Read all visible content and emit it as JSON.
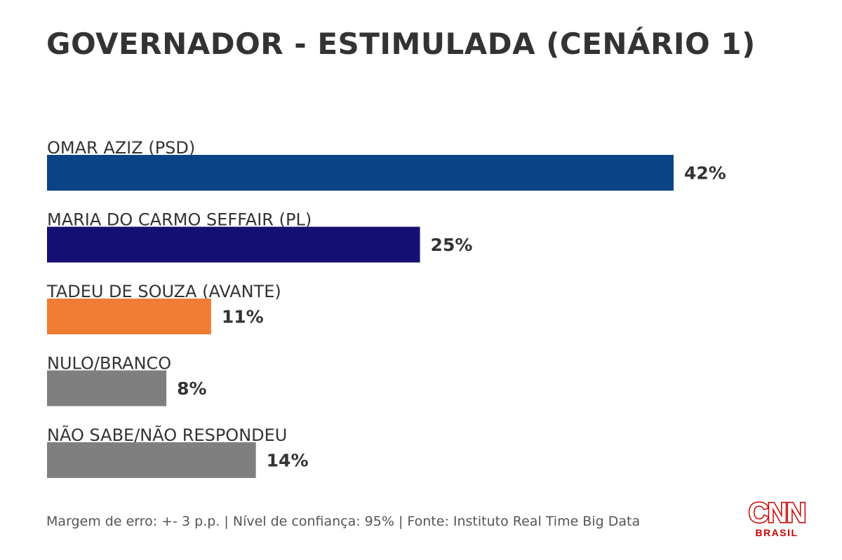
{
  "title": "GOVERNADOR - ESTIMULADA (CENÁRIO 1)",
  "footer": "Margem de erro: +- 3 p.p. | Nível de confiança: 95% | Fonte: Instituto Real Time Big Data",
  "logo": {
    "main": "CNN",
    "sub": "BRASIL"
  },
  "chart_data": {
    "type": "bar",
    "orientation": "horizontal",
    "title": "GOVERNADOR - ESTIMULADA (CENÁRIO 1)",
    "categories": [
      "OMAR AZIZ (PSD)",
      "MARIA DO CARMO SEFFAIR (PL)",
      "TADEU DE SOUZA (AVANTE)",
      "NULO/BRANCO",
      "NÃO SABE/NÃO RESPONDEU"
    ],
    "values": [
      42,
      25,
      11,
      8,
      14
    ],
    "value_labels": [
      "42%",
      "25%",
      "11%",
      "8%",
      "14%"
    ],
    "colors": [
      "#0b4486",
      "#160f73",
      "#ef7d33",
      "#7f7f7f",
      "#7f7f7f"
    ],
    "xlim": [
      0,
      100
    ],
    "grid": false,
    "legend": "none"
  }
}
